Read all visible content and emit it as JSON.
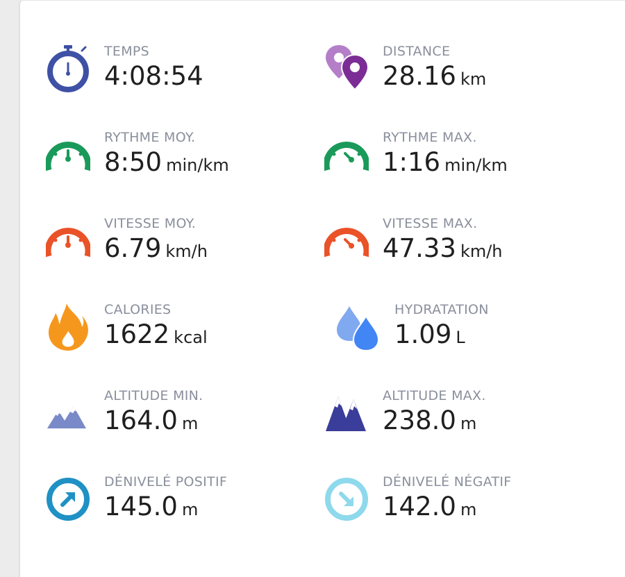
{
  "stats": {
    "temps": {
      "label": "TEMPS",
      "value": "4:08:54",
      "unit": ""
    },
    "distance": {
      "label": "DISTANCE",
      "value": "28.16",
      "unit": "km"
    },
    "rythme_moy": {
      "label": "RYTHME MOY.",
      "value": "8:50",
      "unit": "min/km"
    },
    "rythme_max": {
      "label": "RYTHME MAX.",
      "value": "1:16",
      "unit": "min/km"
    },
    "vitesse_moy": {
      "label": "VITESSE MOY.",
      "value": "6.79",
      "unit": "km/h"
    },
    "vitesse_max": {
      "label": "VITESSE MAX.",
      "value": "47.33",
      "unit": "km/h"
    },
    "calories": {
      "label": "CALORIES",
      "value": "1622",
      "unit": "kcal"
    },
    "hydratation": {
      "label": "HYDRATATION",
      "value": "1.09",
      "unit": "L"
    },
    "altitude_min": {
      "label": "ALTITUDE MIN.",
      "value": "164.0",
      "unit": "m"
    },
    "altitude_max": {
      "label": "ALTITUDE MAX.",
      "value": "238.0",
      "unit": "m"
    },
    "denivele_positif": {
      "label": "DÉNIVELÉ POSITIF",
      "value": "145.0",
      "unit": "m"
    },
    "denivele_negatif": {
      "label": "DÉNIVELÉ NÉGATIF",
      "value": "142.0",
      "unit": "m"
    }
  },
  "icons": {
    "temps": "stopwatch-icon",
    "distance": "map-pins-icon",
    "rythme_moy": "pace-gauge-icon",
    "rythme_max": "pace-gauge-icon",
    "vitesse_moy": "speed-gauge-icon",
    "vitesse_max": "speed-gauge-icon",
    "calories": "flame-icon",
    "hydratation": "water-drops-icon",
    "altitude_min": "mountains-icon",
    "altitude_max": "mountains-icon",
    "denivele_positif": "arrow-up-right-icon",
    "denivele_negatif": "arrow-down-right-icon"
  },
  "colors": {
    "stopwatch": "#3f51a5",
    "map_pin_light": "#b57ec9",
    "map_pin_dark": "#7b2d95",
    "pace": "#1a9a5a",
    "speed": "#ea5228",
    "flame": "#f6971d",
    "drop_light": "#80a9ef",
    "drop_dark": "#4285f4",
    "mountain_light": "#7a8ac8",
    "mountain_dark": "#3b3d9a",
    "ascent": "#1f91c4",
    "descent": "#8ed9ec"
  }
}
